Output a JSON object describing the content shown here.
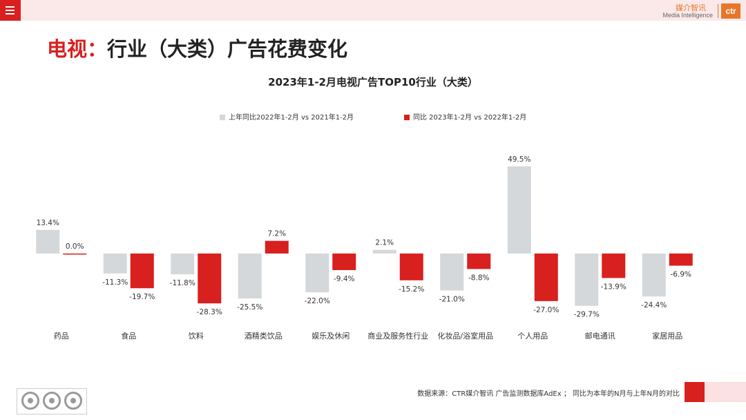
{
  "header": {
    "menu_icon": "hamburger-icon",
    "brand_cn": "媒介智讯",
    "brand_en": "Media Intelligence",
    "brand_logo": "ctr"
  },
  "page_title": {
    "highlight": "电视：",
    "rest": "行业（大类）广告花费变化"
  },
  "chart_data": {
    "type": "bar",
    "title": "2023年1-2月电视广告TOP10行业（大类）",
    "categories": [
      "药品",
      "食品",
      "饮料",
      "酒精类饮品",
      "娱乐及休闲",
      "商业及服务性行业",
      "化妆品/浴室用品",
      "个人用品",
      "邮电通讯",
      "家居用品"
    ],
    "series": [
      {
        "name": "上年同比2022年1-2月  vs  2021年1-2月",
        "color": "#d4d8da",
        "values": [
          13.4,
          -11.3,
          -11.8,
          -25.5,
          -22.0,
          2.1,
          -21.0,
          49.5,
          -29.7,
          -24.4
        ]
      },
      {
        "name": "同比 2023年1-2月  vs  2022年1-2月",
        "color": "#d8201f",
        "values": [
          0.0,
          -19.7,
          -28.3,
          7.2,
          -9.4,
          -15.2,
          -8.8,
          -27.0,
          -13.9,
          -6.9
        ]
      }
    ],
    "value_suffix": "%",
    "ylim": [
      -35,
      55
    ],
    "grid": false,
    "legend": "top"
  },
  "footer": {
    "source": "数据来源：CTR媒介智讯 广告监测数据库AdEx ； 同比为本年的N月与上年N月的对比",
    "certification": "SGS"
  }
}
